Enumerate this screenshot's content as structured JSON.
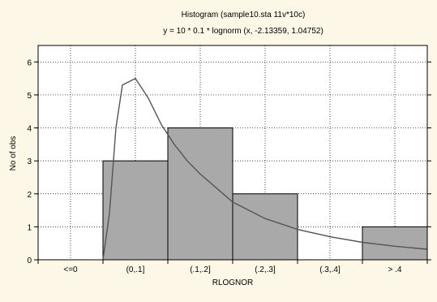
{
  "chart_data": {
    "type": "bar",
    "title": "Histogram (sample10.sta 11v*10c)",
    "subtitle": "y = 10 * 0.1 * lognorm (x, -2.13359, 1.04752)",
    "xlabel": "RLOGNOR",
    "ylabel": "No of obs",
    "categories": [
      "<=0",
      "(0,.1]",
      "(.1,.2]",
      "(.2,.3]",
      "(.3,.4]",
      "> .4"
    ],
    "values": [
      0,
      3,
      4,
      2,
      0,
      1
    ],
    "ylim": [
      0,
      6.5
    ],
    "yticks": [
      0,
      1,
      2,
      3,
      4,
      5,
      6
    ],
    "grid": true,
    "bar_color": "#a9a9a9",
    "curve": {
      "type": "line",
      "description_formula": "lognormal density fit",
      "x": [
        0.0,
        0.01,
        0.02,
        0.03,
        0.05,
        0.07,
        0.09,
        0.11,
        0.13,
        0.15,
        0.2,
        0.25,
        0.3,
        0.35,
        0.4,
        0.45,
        0.5
      ],
      "y": [
        0.0,
        1.4,
        4.0,
        5.3,
        5.5,
        4.9,
        4.1,
        3.5,
        3.0,
        2.6,
        1.75,
        1.25,
        0.92,
        0.7,
        0.53,
        0.41,
        0.32
      ]
    }
  }
}
